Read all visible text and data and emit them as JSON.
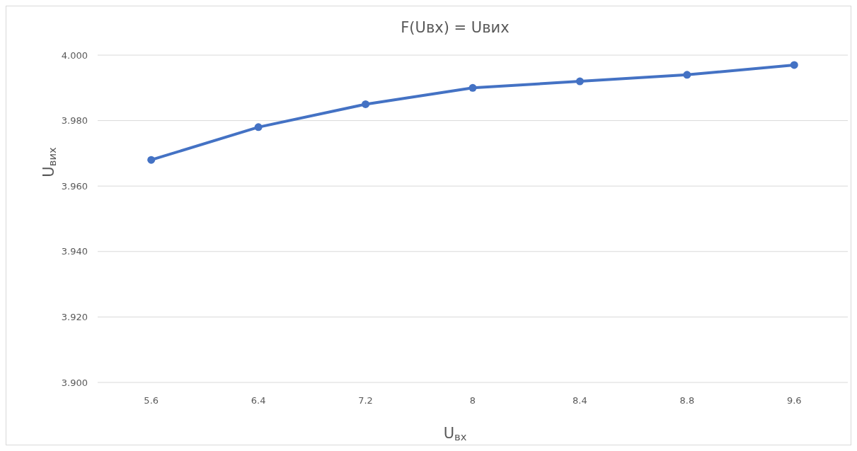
{
  "chart_data": {
    "type": "line",
    "title": "F(Uвх) = Uвих",
    "xlabel": "U$_{вх}$",
    "ylabel": "U$_{вих}$",
    "categories": [
      "5.6",
      "6.4",
      "7.2",
      "8",
      "8.4",
      "8.8",
      "9.6"
    ],
    "series": [
      {
        "color": "#4472c4",
        "values": [
          3.968,
          3.978,
          3.985,
          3.99,
          3.992,
          3.994,
          3.997
        ]
      }
    ],
    "ylim": [
      3.9,
      4.0
    ],
    "yticks": [
      {
        "value": 3.9,
        "label": "3.900"
      },
      {
        "value": 3.92,
        "label": "3.920"
      },
      {
        "value": 3.94,
        "label": "3.940"
      },
      {
        "value": 3.96,
        "label": "3.960"
      },
      {
        "value": 3.98,
        "label": "3.980"
      },
      {
        "value": 4.0,
        "label": "4.000"
      }
    ],
    "grid": "y",
    "marker": "circle",
    "line_style": "solid"
  }
}
